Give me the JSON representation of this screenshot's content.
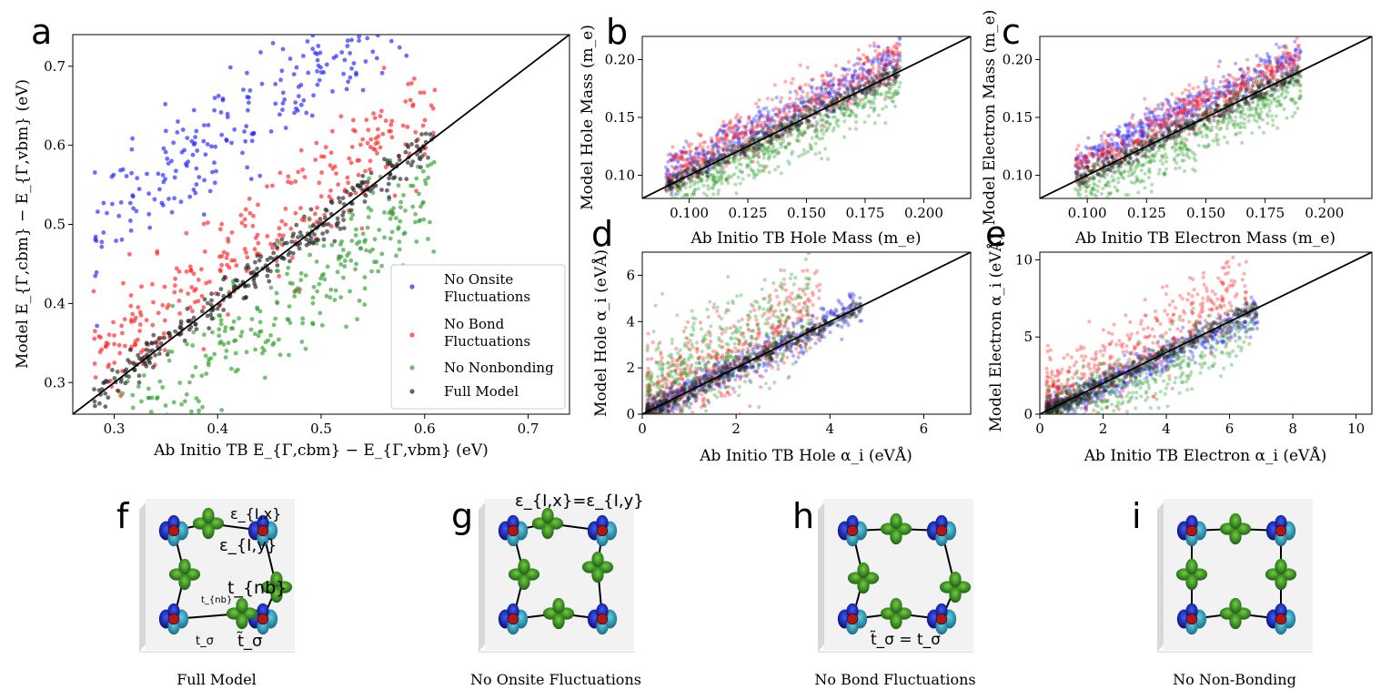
{
  "chart_data": [
    {
      "id": "a",
      "type": "scatter",
      "panel_label": "a",
      "xlabel_pre": "Ab Initio TB ",
      "xlabel_math": "E",
      "xlabel_text": "Ab Initio TB E_{Γ,cbm} − E_{Γ,vbm} (eV)",
      "ylabel_text": "Model E_{Γ,cbm} − E_{Γ,vbm} (eV)",
      "xlim": [
        0.26,
        0.74
      ],
      "ylim": [
        0.26,
        0.74
      ],
      "xticks": [
        "0.3",
        "0.4",
        "0.5",
        "0.6",
        "0.7"
      ],
      "yticks": [
        "0.3",
        "0.4",
        "0.5",
        "0.6",
        "0.7"
      ],
      "legend_position": "lower-right",
      "legend": [
        "No Onsite Fluctuations",
        "No Bond Fluctuations",
        "No Nonbonding",
        "Full Model"
      ],
      "series": [
        {
          "name": "No Onsite Fluctuations",
          "color": "#1f1fff",
          "offset": 0.21,
          "spread": 0.035,
          "n": 260,
          "xr": [
            0.28,
            0.59
          ]
        },
        {
          "name": "No Bond Fluctuations",
          "color": "#ff2020",
          "offset": 0.04,
          "spread": 0.035,
          "n": 300,
          "xr": [
            0.28,
            0.61
          ]
        },
        {
          "name": "No Nonbonding",
          "color": "#2ea02e",
          "offset": -0.07,
          "spread": 0.035,
          "n": 300,
          "xr": [
            0.3,
            0.61
          ]
        },
        {
          "name": "Full Model",
          "color": "#222222",
          "offset": 0.0,
          "spread": 0.012,
          "n": 300,
          "xr": [
            0.28,
            0.61
          ]
        }
      ]
    },
    {
      "id": "b",
      "type": "scatter",
      "panel_label": "b",
      "xlabel_text": "Ab Initio TB Hole Mass (m_e)",
      "ylabel_text": "Model Hole Mass (m_e)",
      "xlim": [
        0.08,
        0.22
      ],
      "ylim": [
        0.08,
        0.22
      ],
      "xticks": [
        "0.100",
        "0.125",
        "0.150",
        "0.175",
        "0.200"
      ],
      "yticks": [
        "0.10",
        "0.15",
        "0.20"
      ],
      "series": [
        {
          "name": "No Onsite Fluctuations",
          "color": "#1f1fff",
          "offset": 0.012,
          "spread": 0.008,
          "n": 500,
          "xr": [
            0.09,
            0.19
          ]
        },
        {
          "name": "No Bond Fluctuations",
          "color": "#ff2020",
          "offset": 0.01,
          "spread": 0.012,
          "n": 500,
          "xr": [
            0.09,
            0.19
          ]
        },
        {
          "name": "No Nonbonding",
          "color": "#2ea02e",
          "offset": -0.012,
          "spread": 0.01,
          "n": 500,
          "xr": [
            0.09,
            0.19
          ]
        },
        {
          "name": "Full Model",
          "color": "#222222",
          "offset": 0.0,
          "spread": 0.004,
          "n": 500,
          "xr": [
            0.09,
            0.19
          ]
        }
      ]
    },
    {
      "id": "c",
      "type": "scatter",
      "panel_label": "c",
      "xlabel_text": "Ab Initio TB Electron Mass (m_e)",
      "ylabel_text": "Model Electron Mass (m_e)",
      "xlim": [
        0.08,
        0.22
      ],
      "ylim": [
        0.08,
        0.22
      ],
      "xticks": [
        "0.100",
        "0.125",
        "0.150",
        "0.175",
        "0.200"
      ],
      "yticks": [
        "0.10",
        "0.15",
        "0.20"
      ],
      "series": [
        {
          "name": "No Onsite Fluctuations",
          "color": "#1f1fff",
          "offset": 0.016,
          "spread": 0.007,
          "n": 500,
          "xr": [
            0.095,
            0.19
          ]
        },
        {
          "name": "No Bond Fluctuations",
          "color": "#ff2020",
          "offset": 0.012,
          "spread": 0.009,
          "n": 500,
          "xr": [
            0.095,
            0.19
          ]
        },
        {
          "name": "No Nonbonding",
          "color": "#2ea02e",
          "offset": -0.014,
          "spread": 0.01,
          "n": 500,
          "xr": [
            0.095,
            0.19
          ]
        },
        {
          "name": "Full Model",
          "color": "#222222",
          "offset": 0.0,
          "spread": 0.004,
          "n": 500,
          "xr": [
            0.095,
            0.19
          ]
        }
      ]
    },
    {
      "id": "d",
      "type": "scatter",
      "panel_label": "d",
      "xlabel_text": "Ab Initio TB Hole α_i (eVÅ)",
      "ylabel_text": "Model Hole α_i (eVÅ)",
      "xlim": [
        0,
        7
      ],
      "ylim": [
        0,
        7
      ],
      "xticks": [
        "0",
        "2",
        "4",
        "6"
      ],
      "yticks": [
        "0",
        "2",
        "4",
        "6"
      ],
      "series": [
        {
          "name": "No Onsite Fluctuations",
          "color": "#1f1fff",
          "offset": 0.0,
          "spread": 0.35,
          "n": 500,
          "xr": [
            0.1,
            4.7
          ]
        },
        {
          "name": "No Bond Fluctuations",
          "color": "#ff2020",
          "offset": 1.2,
          "spread": 1.0,
          "n": 500,
          "xr": [
            0.1,
            3.8
          ]
        },
        {
          "name": "No Nonbonding",
          "color": "#2ea02e",
          "offset": 1.3,
          "spread": 1.2,
          "n": 500,
          "xr": [
            0.1,
            3.6
          ]
        },
        {
          "name": "Full Model",
          "color": "#222222",
          "offset": 0.0,
          "spread": 0.2,
          "n": 500,
          "xr": [
            0.1,
            4.7
          ]
        }
      ]
    },
    {
      "id": "e",
      "type": "scatter",
      "panel_label": "e",
      "xlabel_text": "Ab Initio TB Electron α_i (eVÅ)",
      "ylabel_text": "Model Electron α_i (eVÅ)",
      "xlim": [
        0,
        10.5
      ],
      "ylim": [
        0,
        10.5
      ],
      "xticks": [
        "0",
        "2",
        "4",
        "6",
        "8",
        "10"
      ],
      "yticks": [
        "0",
        "5",
        "10"
      ],
      "series": [
        {
          "name": "No Onsite Fluctuations",
          "color": "#1f1fff",
          "offset": -0.3,
          "spread": 0.5,
          "n": 500,
          "xr": [
            0.2,
            6.9
          ]
        },
        {
          "name": "No Bond Fluctuations",
          "color": "#ff2020",
          "offset": 1.8,
          "spread": 1.3,
          "n": 500,
          "xr": [
            0.2,
            6.6
          ]
        },
        {
          "name": "No Nonbonding",
          "color": "#2ea02e",
          "offset": -1.2,
          "spread": 1.0,
          "n": 500,
          "xr": [
            0.2,
            6.8
          ]
        },
        {
          "name": "Full Model",
          "color": "#222222",
          "offset": 0.0,
          "spread": 0.3,
          "n": 500,
          "xr": [
            0.2,
            6.9
          ]
        }
      ]
    }
  ],
  "diagrams": [
    {
      "label": "f",
      "caption": "Full Model",
      "annotations": [
        "ε_{I,x}",
        "ε_{I,y}",
        "t_{nb}",
        "t_{nb}",
        "t_σ",
        "t̃_σ"
      ]
    },
    {
      "label": "g",
      "caption": "No Onsite Fluctuations",
      "annotations": [
        "ε_{I,x}=ε_{I,y}"
      ]
    },
    {
      "label": "h",
      "caption": "No Bond Fluctuations",
      "annotations": [
        "t̃_σ = t_σ"
      ]
    },
    {
      "label": "i",
      "caption": "No Non-Bonding",
      "annotations": []
    }
  ],
  "colors": {
    "blue": "#1f1fff",
    "red": "#ff2020",
    "green": "#2ea02e",
    "black": "#222222"
  }
}
